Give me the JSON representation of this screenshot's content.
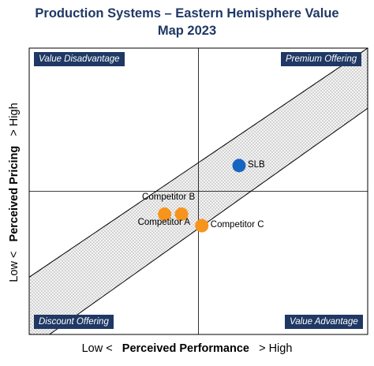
{
  "title": {
    "line1": "Production Systems – Eastern Hemisphere Value",
    "line2": "Map 2023"
  },
  "quadrants": {
    "top_left": "Value Disadvantage",
    "top_right": "Premium Offering",
    "bottom_left": "Discount Offering",
    "bottom_right": "Value Advantage"
  },
  "axes": {
    "x": {
      "low": "Low <",
      "label": "Perceived Performance",
      "high": "> High"
    },
    "y": {
      "low": "Low <",
      "label": "Perceived Pricing",
      "high": "> High"
    }
  },
  "colors": {
    "title": "#1f3864",
    "label_box": "#1f3864",
    "slb": "#1565c0",
    "competitor": "#f7941d",
    "band_fill": "#f0f0f0"
  },
  "chart_data": {
    "type": "scatter",
    "title": "Production Systems – Eastern Hemisphere Value Map 2023",
    "xlabel": "Perceived Performance",
    "ylabel": "Perceived Pricing",
    "xlim": [
      0,
      10
    ],
    "ylim": [
      0,
      10
    ],
    "grid": false,
    "midlines": {
      "x": 5,
      "y": 5
    },
    "value_band": {
      "lower": [
        [
          0.6,
          0
        ],
        [
          10,
          7.9
        ]
      ],
      "upper": [
        [
          0,
          2.0
        ],
        [
          10,
          10
        ]
      ]
    },
    "points": [
      {
        "name": "SLB",
        "x": 6.2,
        "y": 5.9,
        "color": "#1565c0"
      },
      {
        "name": "Competitor A",
        "x": 4.0,
        "y": 4.2,
        "color": "#f7941d"
      },
      {
        "name": "Competitor B",
        "x": 4.5,
        "y": 4.2,
        "color": "#f7941d"
      },
      {
        "name": "Competitor C",
        "x": 5.1,
        "y": 3.8,
        "color": "#f7941d"
      }
    ]
  }
}
